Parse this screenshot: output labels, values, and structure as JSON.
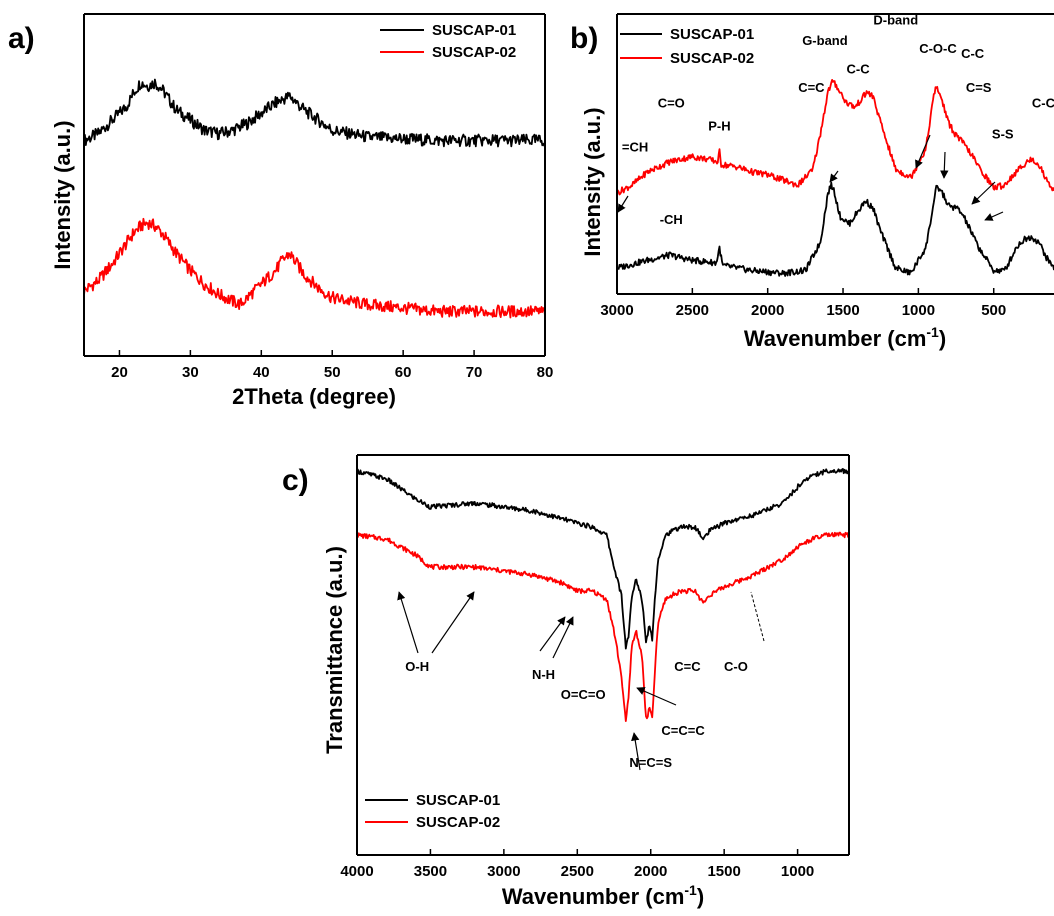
{
  "colors": {
    "black_series": "#000000",
    "red_series": "#ff0000",
    "frame": "#000000"
  },
  "chart_data": [
    {
      "panel": "a)",
      "type": "line",
      "xlabel": "2Theta (degree)",
      "ylabel": "Intensity (a.u.)",
      "xlim": [
        15,
        80
      ],
      "xticks": [
        20,
        30,
        40,
        50,
        60,
        70,
        80
      ],
      "yticks_shown": false,
      "legend_position": "top-right",
      "series": [
        {
          "name": "SUSCAP-01",
          "color": "#000000",
          "x": [
            15,
            17,
            19,
            21,
            22,
            23,
            24,
            25,
            26,
            27,
            28,
            30,
            32,
            34,
            36,
            38,
            40,
            42,
            43,
            44,
            45,
            46,
            48,
            50,
            55,
            60,
            65,
            70,
            75,
            80
          ],
          "y": [
            0.63,
            0.65,
            0.69,
            0.73,
            0.77,
            0.8,
            0.79,
            0.8,
            0.78,
            0.75,
            0.72,
            0.69,
            0.66,
            0.65,
            0.66,
            0.68,
            0.71,
            0.74,
            0.75,
            0.76,
            0.74,
            0.72,
            0.69,
            0.66,
            0.64,
            0.635,
            0.63,
            0.63,
            0.63,
            0.63
          ]
        },
        {
          "name": "SUSCAP-02",
          "color": "#ff0000",
          "x": [
            15,
            17,
            19,
            21,
            22,
            23,
            24,
            25,
            26,
            27,
            28,
            30,
            32,
            34,
            36,
            37,
            38,
            40,
            42,
            43,
            44,
            45,
            46,
            48,
            50,
            55,
            60,
            65,
            70,
            75,
            80
          ],
          "y": [
            0.19,
            0.22,
            0.27,
            0.33,
            0.36,
            0.38,
            0.39,
            0.38,
            0.36,
            0.33,
            0.3,
            0.25,
            0.21,
            0.18,
            0.16,
            0.15,
            0.17,
            0.21,
            0.25,
            0.28,
            0.3,
            0.27,
            0.24,
            0.2,
            0.17,
            0.15,
            0.14,
            0.13,
            0.13,
            0.13,
            0.13
          ]
        }
      ]
    },
    {
      "panel": "b)",
      "type": "line",
      "xlabel": "Wavenumber (cm",
      "xlabel_sup": "-1",
      "xlabel_end": ")",
      "ylabel": "Intensity (a.u.)",
      "xlim": [
        3000,
        100
      ],
      "x_reversed": true,
      "xticks": [
        3000,
        2500,
        2000,
        1500,
        1000,
        500
      ],
      "yticks_shown": false,
      "legend_position": "top-left",
      "series": [
        {
          "name": "SUSCAP-01",
          "color": "#000000",
          "x": [
            3000,
            2800,
            2650,
            2500,
            2340,
            2320,
            2300,
            2100,
            1900,
            1750,
            1650,
            1600,
            1580,
            1560,
            1520,
            1460,
            1400,
            1350,
            1300,
            1250,
            1150,
            1050,
            950,
            880,
            850,
            800,
            740,
            700,
            600,
            500,
            430,
            400,
            350,
            300,
            250,
            200,
            150,
            100
          ],
          "y": [
            0.1,
            0.13,
            0.15,
            0.13,
            0.12,
            0.18,
            0.11,
            0.09,
            0.08,
            0.09,
            0.2,
            0.39,
            0.42,
            0.4,
            0.3,
            0.27,
            0.32,
            0.36,
            0.33,
            0.24,
            0.1,
            0.08,
            0.18,
            0.41,
            0.4,
            0.34,
            0.33,
            0.3,
            0.18,
            0.09,
            0.09,
            0.12,
            0.18,
            0.21,
            0.22,
            0.2,
            0.14,
            0.1
          ]
        },
        {
          "name": "SUSCAP-02",
          "color": "#ff0000",
          "x": [
            3000,
            2900,
            2800,
            2650,
            2500,
            2400,
            2330,
            2320,
            2310,
            2200,
            2100,
            2000,
            1900,
            1800,
            1700,
            1650,
            1600,
            1570,
            1540,
            1480,
            1420,
            1380,
            1340,
            1300,
            1250,
            1150,
            1050,
            950,
            900,
            880,
            850,
            800,
            760,
            700,
            650,
            600,
            500,
            430,
            400,
            350,
            300,
            250,
            200,
            150,
            100
          ],
          "y": [
            0.39,
            0.42,
            0.47,
            0.51,
            0.53,
            0.52,
            0.51,
            0.55,
            0.5,
            0.49,
            0.47,
            0.46,
            0.44,
            0.42,
            0.48,
            0.62,
            0.78,
            0.82,
            0.8,
            0.74,
            0.72,
            0.75,
            0.78,
            0.76,
            0.66,
            0.48,
            0.45,
            0.56,
            0.76,
            0.8,
            0.76,
            0.66,
            0.62,
            0.58,
            0.54,
            0.49,
            0.41,
            0.42,
            0.44,
            0.47,
            0.5,
            0.52,
            0.5,
            0.44,
            0.4
          ]
        }
      ],
      "annotations": [
        {
          "text": "=CH",
          "x": 2880,
          "y": 0.55
        },
        {
          "text": "C=O",
          "x": 2640,
          "y": 0.72
        },
        {
          "text": "P-H",
          "x": 2320,
          "y": 0.63
        },
        {
          "text": "G-band",
          "x": 1620,
          "y": 0.96
        },
        {
          "text": "D-band",
          "x": 1150,
          "y": 1.04
        },
        {
          "text": "C=C",
          "x": 1710,
          "y": 0.78
        },
        {
          "text": "C-C",
          "x": 1400,
          "y": 0.85
        },
        {
          "text": "C-O-C",
          "x": 870,
          "y": 0.93
        },
        {
          "text": "C-C",
          "x": 640,
          "y": 0.91
        },
        {
          "text": "C=S",
          "x": 600,
          "y": 0.78
        },
        {
          "text": "S-S",
          "x": 440,
          "y": 0.6
        },
        {
          "text": "C-C",
          "x": 170,
          "y": 0.72
        },
        {
          "text": "-CH",
          "x": 2640,
          "y": 0.27
        }
      ]
    },
    {
      "panel": "c)",
      "type": "line",
      "xlabel": "Wavenumber (cm",
      "xlabel_sup": "-1",
      "xlabel_end": ")",
      "ylabel": "Transmittance (a.u.)",
      "xlim": [
        4000,
        650
      ],
      "x_reversed": true,
      "xticks": [
        4000,
        3500,
        3000,
        2500,
        2000,
        1500,
        1000
      ],
      "yticks_shown": false,
      "legend_position": "bottom-left",
      "series": [
        {
          "name": "SUSCAP-01",
          "color": "#000000",
          "x": [
            4000,
            3800,
            3600,
            3500,
            3200,
            3000,
            2800,
            2600,
            2400,
            2300,
            2250,
            2200,
            2170,
            2150,
            2130,
            2100,
            2060,
            2030,
            2010,
            1990,
            1970,
            1950,
            1900,
            1800,
            1700,
            1640,
            1600,
            1500,
            1300,
            1100,
            1000,
            900,
            800,
            650
          ],
          "y": [
            0.96,
            0.94,
            0.89,
            0.87,
            0.88,
            0.87,
            0.86,
            0.84,
            0.82,
            0.8,
            0.72,
            0.65,
            0.52,
            0.55,
            0.64,
            0.69,
            0.64,
            0.53,
            0.58,
            0.54,
            0.65,
            0.74,
            0.8,
            0.82,
            0.82,
            0.79,
            0.81,
            0.83,
            0.85,
            0.88,
            0.92,
            0.95,
            0.96,
            0.96
          ]
        },
        {
          "name": "SUSCAP-02",
          "color": "#ff0000",
          "x": [
            4000,
            3800,
            3600,
            3500,
            3200,
            3000,
            2800,
            2600,
            2500,
            2400,
            2300,
            2250,
            2200,
            2170,
            2150,
            2130,
            2100,
            2060,
            2030,
            2010,
            1990,
            1970,
            1950,
            1900,
            1800,
            1700,
            1640,
            1600,
            1500,
            1300,
            1100,
            1000,
            900,
            800,
            650
          ],
          "y": [
            0.8,
            0.79,
            0.75,
            0.72,
            0.72,
            0.71,
            0.7,
            0.68,
            0.66,
            0.66,
            0.64,
            0.56,
            0.45,
            0.33,
            0.4,
            0.52,
            0.56,
            0.5,
            0.33,
            0.37,
            0.34,
            0.47,
            0.58,
            0.64,
            0.66,
            0.66,
            0.63,
            0.65,
            0.67,
            0.7,
            0.74,
            0.77,
            0.79,
            0.8,
            0.8
          ]
        }
      ],
      "annotations": [
        {
          "text": "O-H",
          "x": 3590,
          "y": 0.46
        },
        {
          "text": "N-H",
          "x": 2730,
          "y": 0.44
        },
        {
          "text": "O=C=O",
          "x": 2460,
          "y": 0.39
        },
        {
          "text": "C=C",
          "x": 1750,
          "y": 0.46
        },
        {
          "text": "C-O",
          "x": 1420,
          "y": 0.46
        },
        {
          "text": "C=C=C",
          "x": 1780,
          "y": 0.3
        },
        {
          "text": "N=C=S",
          "x": 2000,
          "y": 0.22
        }
      ]
    }
  ]
}
